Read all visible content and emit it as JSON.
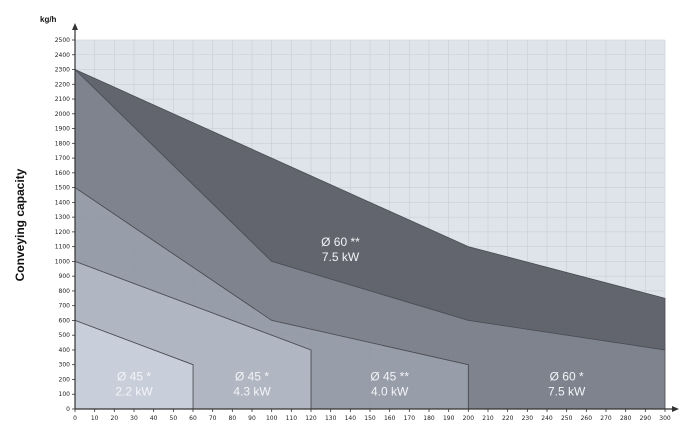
{
  "chart_data": {
    "type": "area",
    "ylabel": "Conveying capacity",
    "yunit": "kg/h",
    "xlabel": "",
    "xlim": [
      0,
      300
    ],
    "ylim": [
      0,
      2500
    ],
    "x_ticks": [
      0,
      10,
      20,
      30,
      40,
      50,
      60,
      70,
      80,
      90,
      100,
      110,
      120,
      130,
      140,
      150,
      160,
      170,
      180,
      190,
      200,
      210,
      220,
      230,
      240,
      250,
      260,
      270,
      280,
      290,
      300
    ],
    "y_ticks": [
      0,
      100,
      200,
      300,
      400,
      500,
      600,
      700,
      800,
      900,
      1000,
      1100,
      1200,
      1300,
      1400,
      1500,
      1600,
      1700,
      1800,
      1900,
      2000,
      2100,
      2200,
      2300,
      2400,
      2500
    ],
    "grid": true,
    "colors": {
      "background": "#ffffff",
      "plot_bg": "#dfe3ea",
      "grid": "#c9ced6",
      "axis": "#333333"
    },
    "series": [
      {
        "name_line1": "Ø 60 **",
        "name_line2": "7.5 kW",
        "color": "#5d6068",
        "points": [
          [
            0,
            2300
          ],
          [
            100,
            1700
          ],
          [
            200,
            1100
          ],
          [
            300,
            750
          ],
          [
            300,
            400
          ],
          [
            200,
            600
          ],
          [
            100,
            1000
          ],
          [
            0,
            2300
          ]
        ],
        "label_pos": [
          135,
          1090
        ]
      },
      {
        "name_line1": "Ø 60 *",
        "name_line2": "7.5 kW",
        "color": "#7a7f89",
        "points": [
          [
            0,
            2300
          ],
          [
            100,
            1000
          ],
          [
            200,
            600
          ],
          [
            300,
            400
          ],
          [
            300,
            0
          ],
          [
            200,
            0
          ],
          [
            200,
            300
          ],
          [
            100,
            600
          ],
          [
            0,
            1500
          ]
        ],
        "label_pos": [
          250,
          180
        ]
      },
      {
        "name_line1": "Ø 45 **",
        "name_line2": "4.0 kW",
        "color": "#949aa5",
        "points": [
          [
            0,
            1500
          ],
          [
            100,
            600
          ],
          [
            200,
            300
          ],
          [
            200,
            0
          ],
          [
            120,
            0
          ],
          [
            120,
            400
          ],
          [
            0,
            1000
          ]
        ],
        "label_pos": [
          160,
          180
        ]
      },
      {
        "name_line1": "Ø 45 *",
        "name_line2": "4.3 kW",
        "color": "#afb5bf",
        "points": [
          [
            0,
            1000
          ],
          [
            120,
            400
          ],
          [
            120,
            0
          ],
          [
            60,
            0
          ],
          [
            60,
            300
          ],
          [
            0,
            600
          ]
        ],
        "label_pos": [
          90,
          180
        ]
      },
      {
        "name_line1": "Ø 45 *",
        "name_line2": "2.2 kW",
        "color": "#c8ced8",
        "points": [
          [
            0,
            600
          ],
          [
            60,
            300
          ],
          [
            60,
            0
          ],
          [
            0,
            0
          ]
        ],
        "label_pos": [
          30,
          180
        ]
      }
    ]
  }
}
